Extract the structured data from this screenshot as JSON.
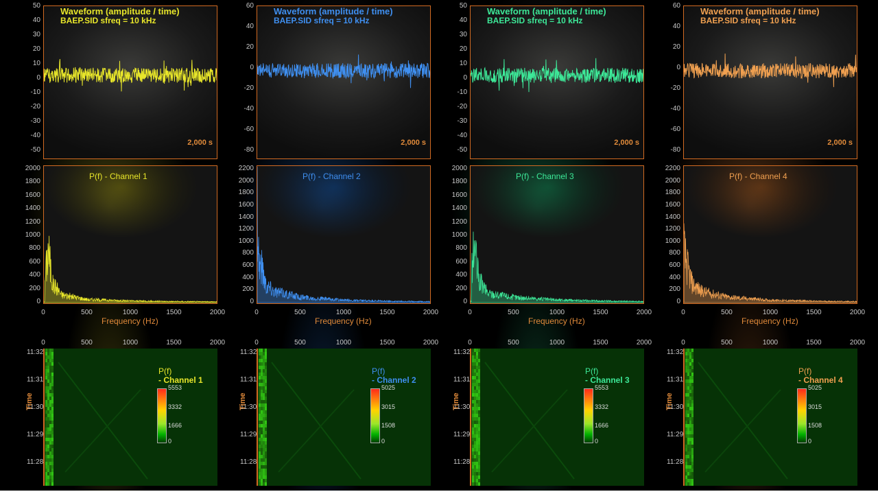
{
  "channels": [
    {
      "color": "#e8e62a",
      "glow": "rgba(200,190,40,0.35)",
      "waveform": {
        "title": "Waveform (amplitude / time)",
        "subtitle": "BAEP.SID sfreq = 10 kHz",
        "time_label": "2,000 s",
        "y_ticks": [
          "50",
          "40",
          "30",
          "20",
          "10",
          "0",
          "-10",
          "-20",
          "-30",
          "-40",
          "-50"
        ],
        "amp": 11
      },
      "spectrum": {
        "title": "P(f) - Channel 1",
        "xlabel": "Frequency (Hz)",
        "y_ticks": [
          "2000",
          "1800",
          "1600",
          "1400",
          "1200",
          "1000",
          "800",
          "600",
          "400",
          "200",
          "0"
        ],
        "x_ticks": [
          "0",
          "500",
          "1000",
          "1500",
          "2000"
        ]
      },
      "spectrogram": {
        "x_ticks": [
          "0",
          "500",
          "1000",
          "1500",
          "2000"
        ],
        "y_ticks": [
          "11:32",
          "11:31",
          "11:30",
          "11:29",
          "11:28"
        ],
        "ylabel": "Time",
        "legend_title": "P(f)",
        "legend_sub": "- Channel 1",
        "scale": [
          "5553",
          "3332",
          "1666",
          "0"
        ]
      }
    },
    {
      "color": "#3f8ff0",
      "glow": "rgba(40,120,220,0.35)",
      "waveform": {
        "title": "Waveform (amplitude / time)",
        "subtitle": "BAEP.SID sfreq = 10 kHz",
        "time_label": "2,000 s",
        "y_ticks": [
          "60",
          "40",
          "20",
          "0",
          "-20",
          "-40",
          "-60",
          "-80"
        ],
        "amp": 11
      },
      "spectrum": {
        "title": "P(f) - Channel 2",
        "xlabel": "Frequency (Hz)",
        "y_ticks": [
          "2200",
          "2000",
          "1800",
          "1600",
          "1400",
          "1200",
          "1000",
          "800",
          "600",
          "400",
          "200",
          "0"
        ],
        "x_ticks": [
          "0",
          "500",
          "1000",
          "1500",
          "2000"
        ]
      },
      "spectrogram": {
        "x_ticks": [
          "0",
          "500",
          "1000",
          "1500",
          "2000"
        ],
        "y_ticks": [
          "11:32",
          "11:31",
          "11:30",
          "11:29",
          "11:28"
        ],
        "ylabel": "Time",
        "legend_title": "P(f)",
        "legend_sub": "- Channel 2",
        "scale": [
          "5025",
          "3015",
          "1508",
          "0"
        ]
      }
    },
    {
      "color": "#3de898",
      "glow": "rgba(40,200,130,0.35)",
      "waveform": {
        "title": "Waveform (amplitude / time)",
        "subtitle": "BAEP.SID sfreq = 10 kHz",
        "time_label": "2,000 s",
        "y_ticks": [
          "50",
          "40",
          "30",
          "20",
          "10",
          "0",
          "-10",
          "-20",
          "-30",
          "-40",
          "-50"
        ],
        "amp": 11
      },
      "spectrum": {
        "title": "P(f) - Channel 3",
        "xlabel": "Frequency (Hz)",
        "y_ticks": [
          "2000",
          "1800",
          "1600",
          "1400",
          "1200",
          "1000",
          "800",
          "600",
          "400",
          "200",
          "0"
        ],
        "x_ticks": [
          "0",
          "500",
          "1000",
          "1500",
          "2000"
        ]
      },
      "spectrogram": {
        "x_ticks": [
          "0",
          "500",
          "1000",
          "1500",
          "2000"
        ],
        "y_ticks": [
          "11:32",
          "11:31",
          "11:30",
          "11:29",
          "11:28"
        ],
        "ylabel": "Time",
        "legend_title": "P(f)",
        "legend_sub": "- Channel 3",
        "scale": [
          "5553",
          "3332",
          "1666",
          "0"
        ]
      }
    },
    {
      "color": "#f0a050",
      "glow": "rgba(210,120,50,0.4)",
      "waveform": {
        "title": "Waveform (amplitude / time)",
        "subtitle": "BAEP.SID sfreq = 10 kHz",
        "time_label": "2,000 s",
        "y_ticks": [
          "60",
          "40",
          "20",
          "0",
          "-20",
          "-40",
          "-60",
          "-80"
        ],
        "amp": 11
      },
      "spectrum": {
        "title": "P(f) - Channel 4",
        "xlabel": "Frequency (Hz)",
        "y_ticks": [
          "2200",
          "2000",
          "1800",
          "1600",
          "1400",
          "1200",
          "1000",
          "800",
          "600",
          "400",
          "200",
          "0"
        ],
        "x_ticks": [
          "0",
          "500",
          "1000",
          "1500",
          "2000"
        ]
      },
      "spectrogram": {
        "x_ticks": [
          "0",
          "500",
          "1000",
          "1500",
          "2000"
        ],
        "y_ticks": [
          "11:32",
          "11:31",
          "11:30",
          "11:29",
          "11:28"
        ],
        "ylabel": "Time",
        "legend_title": "P(f)",
        "legend_sub": "- Channel 4",
        "scale": [
          "5025",
          "3015",
          "1508",
          "0"
        ]
      }
    }
  ],
  "chart_data": [
    {
      "type": "line",
      "title": "Waveform (amplitude / time)",
      "subtitle": "BAEP.SID sfreq = 10 kHz",
      "series": [
        {
          "name": "Channel 1"
        }
      ],
      "ylim": [
        -55,
        55
      ],
      "xlabel": "",
      "ylabel": ""
    },
    {
      "type": "line",
      "title": "Waveform (amplitude / time)",
      "subtitle": "BAEP.SID sfreq = 10 kHz",
      "series": [
        {
          "name": "Channel 2"
        }
      ],
      "ylim": [
        -90,
        70
      ]
    },
    {
      "type": "line",
      "title": "Waveform (amplitude / time)",
      "subtitle": "BAEP.SID sfreq = 10 kHz",
      "series": [
        {
          "name": "Channel 3"
        }
      ],
      "ylim": [
        -55,
        55
      ]
    },
    {
      "type": "line",
      "title": "Waveform (amplitude / time)",
      "subtitle": "BAEP.SID sfreq = 10 kHz",
      "series": [
        {
          "name": "Channel 4"
        }
      ],
      "ylim": [
        -90,
        70
      ]
    },
    {
      "type": "area",
      "title": "P(f) - Channel 1",
      "xlabel": "Frequency (Hz)",
      "xlim": [
        0,
        2000
      ],
      "ylim": [
        0,
        2000
      ],
      "x": [
        10,
        30,
        50,
        60,
        70,
        100,
        150,
        200,
        300,
        500,
        1000,
        1500,
        2000
      ],
      "values": [
        400,
        700,
        1050,
        900,
        750,
        350,
        280,
        150,
        120,
        60,
        30,
        20,
        15
      ]
    },
    {
      "type": "area",
      "title": "P(f) - Channel 2",
      "xlabel": "Frequency (Hz)",
      "xlim": [
        0,
        2000
      ],
      "ylim": [
        0,
        2300
      ],
      "x": [
        0,
        10,
        20,
        50,
        100,
        200,
        300,
        500,
        1000,
        1500,
        2000
      ],
      "values": [
        2300,
        1600,
        900,
        800,
        400,
        250,
        200,
        120,
        50,
        30,
        20
      ]
    },
    {
      "type": "area",
      "title": "P(f) - Channel 3",
      "xlabel": "Frequency (Hz)",
      "xlim": [
        0,
        2000
      ],
      "ylim": [
        0,
        2000
      ],
      "x": [
        10,
        30,
        50,
        60,
        70,
        100,
        150,
        200,
        300,
        500,
        1000,
        1500,
        2000
      ],
      "values": [
        500,
        850,
        1100,
        900,
        700,
        400,
        300,
        180,
        150,
        100,
        50,
        30,
        20
      ]
    },
    {
      "type": "area",
      "title": "P(f) - Channel 4",
      "xlabel": "Frequency (Hz)",
      "xlim": [
        0,
        2000
      ],
      "ylim": [
        0,
        2300
      ],
      "x": [
        0,
        10,
        30,
        50,
        100,
        200,
        300,
        500,
        1000,
        1500,
        2000
      ],
      "values": [
        1300,
        1000,
        900,
        700,
        400,
        250,
        200,
        120,
        50,
        30,
        20
      ]
    },
    {
      "type": "heatmap",
      "legend": "P(f) - Channel 1",
      "scale": [
        0,
        1666,
        3332,
        5553
      ],
      "y_ticks": [
        "11:32",
        "11:31",
        "11:30",
        "11:29",
        "11:28"
      ]
    },
    {
      "type": "heatmap",
      "legend": "P(f) - Channel 2",
      "scale": [
        0,
        1508,
        3015,
        5025
      ],
      "y_ticks": [
        "11:32",
        "11:31",
        "11:30",
        "11:29",
        "11:28"
      ]
    },
    {
      "type": "heatmap",
      "legend": "P(f) - Channel 3",
      "scale": [
        0,
        1666,
        3332,
        5553
      ],
      "y_ticks": [
        "11:32",
        "11:31",
        "11:30",
        "11:29",
        "11:28"
      ]
    },
    {
      "type": "heatmap",
      "legend": "P(f) - Channel 4",
      "scale": [
        0,
        1508,
        3015,
        5025
      ],
      "y_ticks": [
        "11:32",
        "11:31",
        "11:30",
        "11:29",
        "11:28"
      ]
    }
  ]
}
